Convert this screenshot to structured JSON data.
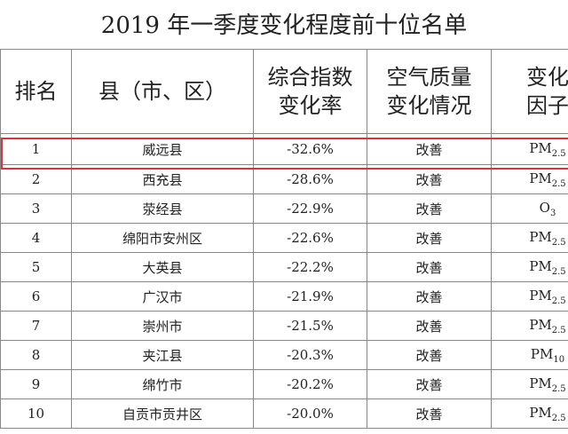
{
  "title": "2019 年一季度变化程度前十位名单",
  "table": {
    "header": [
      [
        "排名"
      ],
      [
        "县（市、区）"
      ],
      [
        "综合指数",
        "变化率"
      ],
      [
        "空气质量",
        "变化情况"
      ],
      [
        "变化",
        "因子"
      ]
    ],
    "rows": [
      [
        1,
        "威远县",
        "-32.6%",
        "改善",
        {
          "base": "PM",
          "sub": "2.5"
        }
      ],
      [
        2,
        "西充县",
        "-28.6%",
        "改善",
        {
          "base": "PM",
          "sub": "2.5"
        }
      ],
      [
        3,
        "荥经县",
        "-22.9%",
        "改善",
        {
          "base": "O",
          "sub": "3"
        }
      ],
      [
        4,
        "绵阳市安州区",
        "-22.6%",
        "改善",
        {
          "base": "PM",
          "sub": "2.5"
        }
      ],
      [
        5,
        "大英县",
        "-22.2%",
        "改善",
        {
          "base": "PM",
          "sub": "2.5"
        }
      ],
      [
        6,
        "广汉市",
        "-21.9%",
        "改善",
        {
          "base": "PM",
          "sub": "2.5"
        }
      ],
      [
        7,
        "崇州市",
        "-21.5%",
        "改善",
        {
          "base": "PM",
          "sub": "2.5"
        }
      ],
      [
        8,
        "夹江县",
        "-20.3%",
        "改善",
        {
          "base": "PM",
          "sub": "10"
        }
      ],
      [
        9,
        "绵竹市",
        "-20.2%",
        "改善",
        {
          "base": "PM",
          "sub": "2.5"
        }
      ],
      [
        10,
        "自贡市贡井区",
        "-20.0%",
        "改善",
        {
          "base": "PM",
          "sub": "2.5"
        }
      ]
    ]
  }
}
